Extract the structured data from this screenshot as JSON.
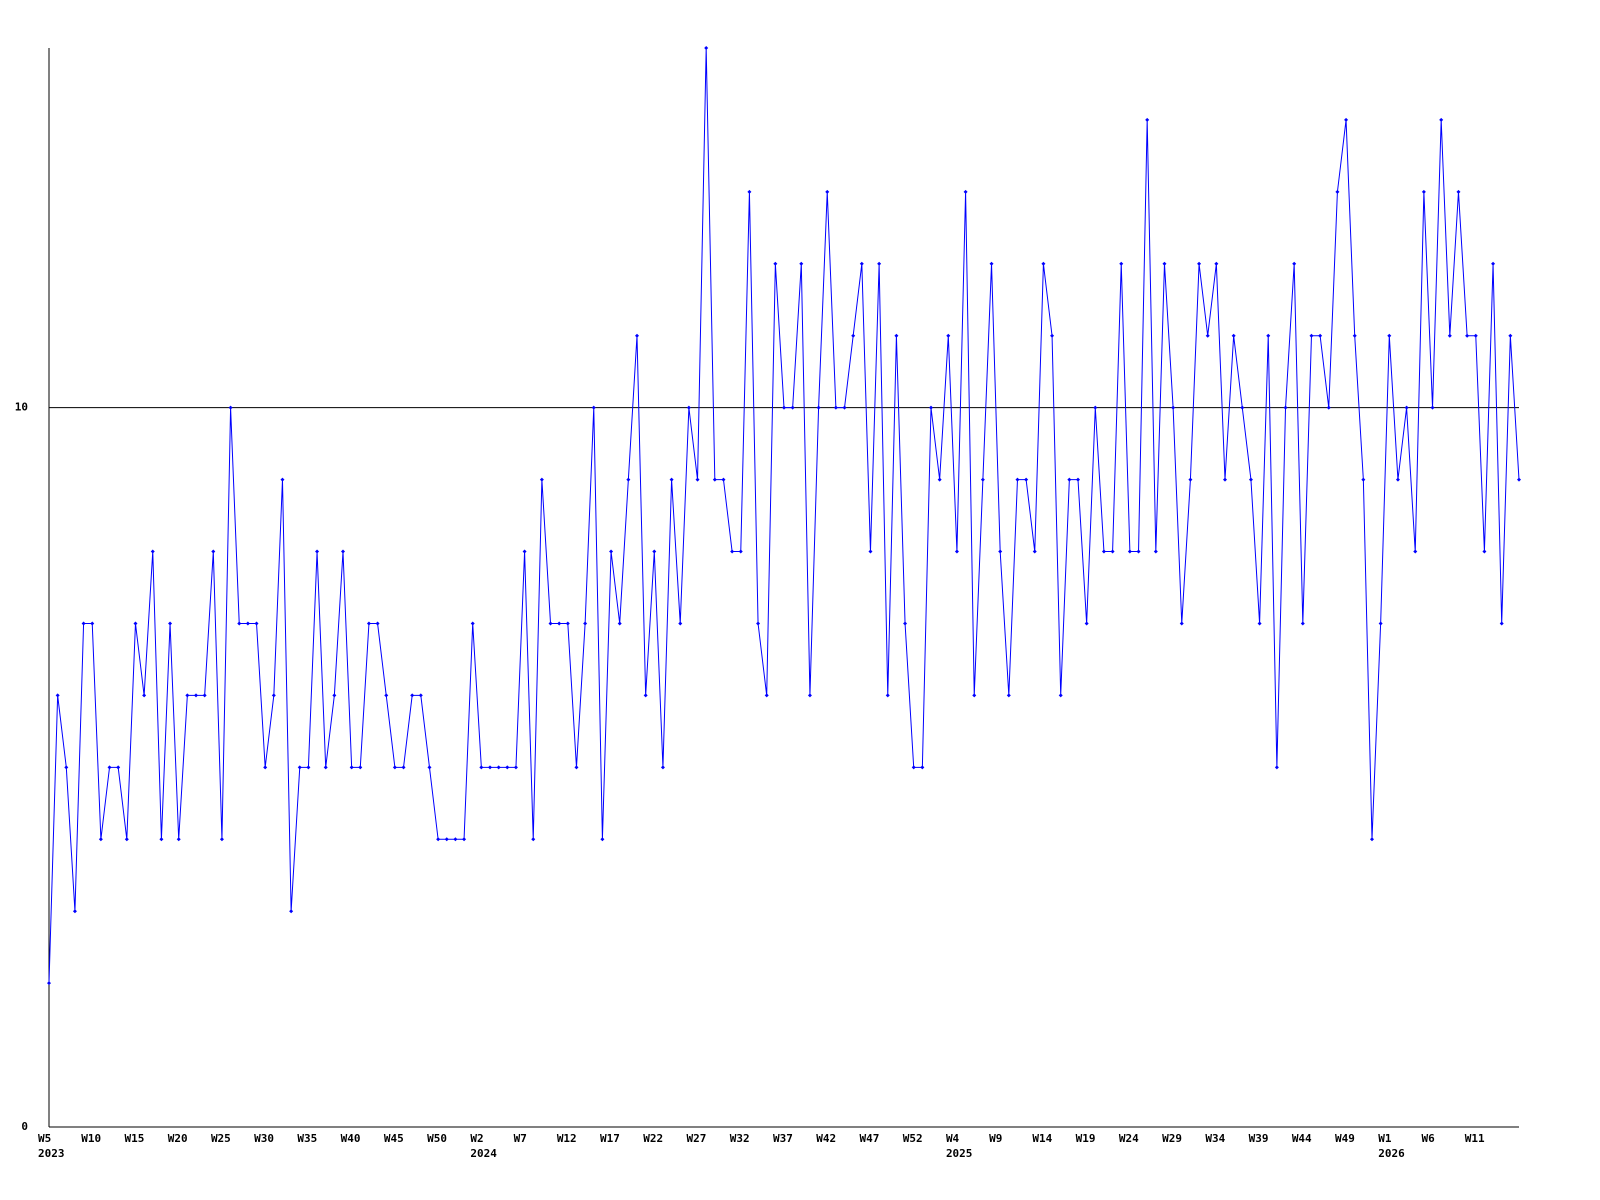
{
  "chart_data": {
    "type": "line",
    "categories": [
      "W5",
      null,
      null,
      null,
      null,
      "W10",
      null,
      null,
      null,
      null,
      "W15",
      null,
      null,
      null,
      null,
      "W20",
      null,
      null,
      null,
      null,
      "W25",
      null,
      null,
      null,
      null,
      "W30",
      null,
      null,
      null,
      null,
      "W35",
      null,
      null,
      null,
      null,
      "W40",
      null,
      null,
      null,
      null,
      "W45",
      null,
      null,
      null,
      null,
      "W50",
      null,
      null,
      null,
      null,
      "W2",
      null,
      null,
      null,
      null,
      "W7",
      null,
      null,
      null,
      null,
      "W12",
      null,
      null,
      null,
      null,
      "W17",
      null,
      null,
      null,
      null,
      "W22",
      null,
      null,
      null,
      null,
      "W27",
      null,
      null,
      null,
      null,
      "W32",
      null,
      null,
      null,
      null,
      "W37",
      null,
      null,
      null,
      null,
      "W42",
      null,
      null,
      null,
      null,
      "W47",
      null,
      null,
      null,
      null,
      "W52",
      null,
      null,
      null,
      null,
      "W4",
      null,
      null,
      null,
      null,
      "W9",
      null,
      null,
      null,
      null,
      "W14",
      null,
      null,
      null,
      null,
      "W19",
      null,
      null,
      null,
      null,
      "W24",
      null,
      null,
      null,
      null,
      "W29",
      null,
      null,
      null,
      null,
      "W34",
      null,
      null,
      null,
      null,
      "W39",
      null,
      null,
      null,
      null,
      "W44",
      null,
      null,
      null,
      null,
      "W49",
      null,
      null,
      null,
      null,
      "W1",
      null,
      null,
      null,
      null,
      "W6",
      null,
      null,
      null,
      null,
      "W11",
      null,
      null,
      null,
      null,
      null
    ],
    "category_years": [
      "2023",
      null,
      null,
      null,
      null,
      null,
      null,
      null,
      null,
      null,
      null,
      null,
      null,
      null,
      null,
      null,
      null,
      null,
      null,
      null,
      null,
      null,
      null,
      null,
      null,
      null,
      null,
      null,
      null,
      null,
      null,
      null,
      null,
      null,
      null,
      null,
      null,
      null,
      null,
      null,
      null,
      null,
      null,
      null,
      null,
      null,
      null,
      null,
      null,
      null,
      "2024",
      null,
      null,
      null,
      null,
      null,
      null,
      null,
      null,
      null,
      null,
      null,
      null,
      null,
      null,
      null,
      null,
      null,
      null,
      null,
      null,
      null,
      null,
      null,
      null,
      null,
      null,
      null,
      null,
      null,
      null,
      null,
      null,
      null,
      null,
      null,
      null,
      null,
      null,
      null,
      null,
      null,
      null,
      null,
      null,
      null,
      null,
      null,
      null,
      null,
      null,
      null,
      null,
      null,
      null,
      "2025",
      null,
      null,
      null,
      null,
      null,
      null,
      null,
      null,
      null,
      null,
      null,
      null,
      null,
      null,
      null,
      null,
      null,
      null,
      null,
      null,
      null,
      null,
      null,
      null,
      null,
      null,
      null,
      null,
      null,
      null,
      null,
      null,
      null,
      null,
      null,
      null,
      null,
      null,
      null,
      null,
      null,
      null,
      null,
      null,
      null,
      null,
      null,
      null,
      null,
      "2026",
      null,
      null,
      null,
      null,
      null,
      null,
      null,
      null,
      null,
      null,
      null,
      null,
      null,
      null,
      null
    ],
    "series": [
      {
        "color": "#0000ff",
        "values": [
          2,
          6,
          5,
          3,
          7,
          7,
          4,
          5,
          5,
          4,
          7,
          6,
          8,
          4,
          7,
          4,
          6,
          6,
          6,
          8,
          4,
          10,
          7,
          7,
          7,
          5,
          6,
          9,
          3,
          5,
          5,
          8,
          5,
          6,
          8,
          5,
          5,
          7,
          7,
          6,
          5,
          5,
          6,
          6,
          5,
          4,
          4,
          4,
          4,
          7,
          5,
          5,
          5,
          5,
          5,
          8,
          4,
          9,
          7,
          7,
          7,
          5,
          7,
          10,
          4,
          8,
          7,
          9,
          11,
          6,
          8,
          5,
          9,
          7,
          10,
          9,
          15,
          9,
          9,
          8,
          8,
          13,
          7,
          6,
          12,
          10,
          10,
          12,
          6,
          10,
          13,
          10,
          10,
          11,
          12,
          8,
          12,
          6,
          11,
          7,
          5,
          5,
          10,
          9,
          11,
          8,
          13,
          6,
          9,
          12,
          8,
          6,
          9,
          9,
          8,
          12,
          11,
          6,
          9,
          9,
          7,
          10,
          8,
          8,
          12,
          8,
          8,
          14,
          8,
          12,
          10,
          7,
          9,
          12,
          11,
          12,
          9,
          11,
          10,
          9,
          7,
          11,
          5,
          10,
          12,
          7,
          11,
          11,
          10,
          13,
          14,
          11,
          9,
          4,
          7,
          11,
          9,
          10,
          8,
          13,
          10,
          14,
          11,
          13,
          11,
          11,
          8,
          12,
          7,
          11,
          9
        ]
      }
    ],
    "ylim": [
      0,
      15
    ],
    "yticks": [
      0,
      10
    ],
    "grid": true
  }
}
